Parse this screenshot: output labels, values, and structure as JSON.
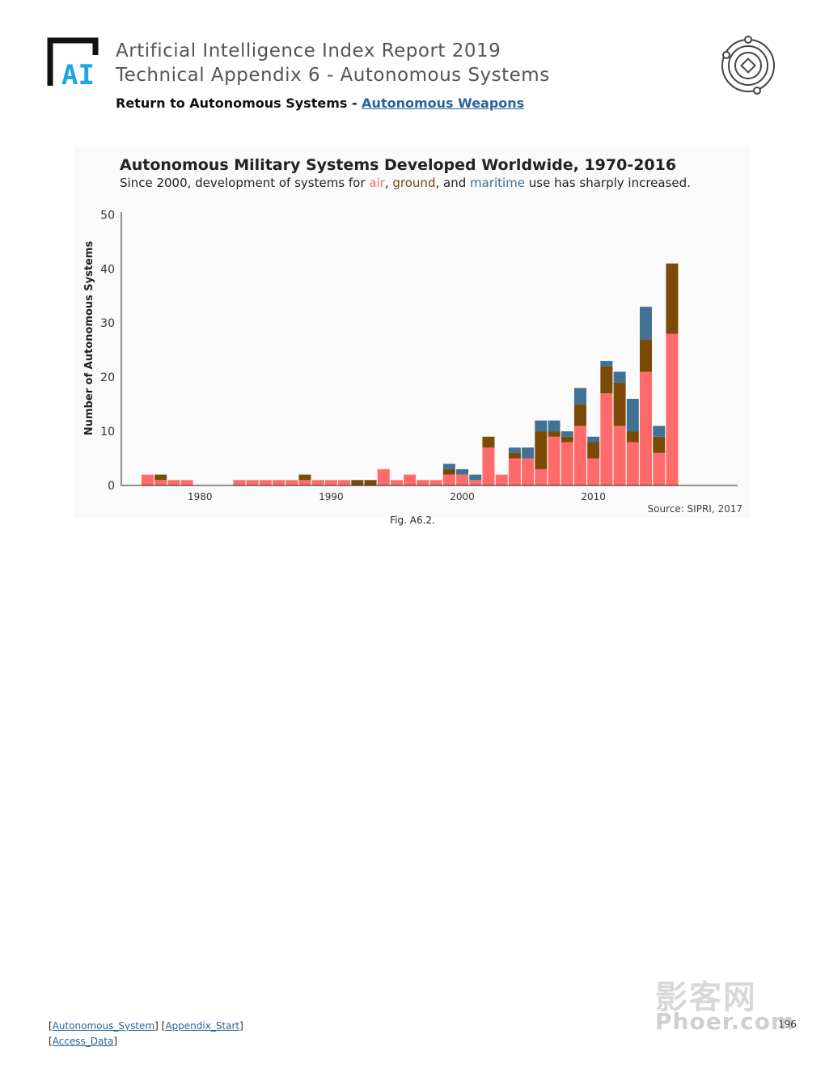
{
  "header": {
    "title": "Artificial Intelligence Index Report 2019",
    "subtitle": "Technical Appendix 6 - Autonomous Systems",
    "return_prefix": "Return to Autonomous Systems - ",
    "return_link": "Autonomous Weapons",
    "logo_text": "AI"
  },
  "colors": {
    "air": "#ff6b6b",
    "ground": "#7a4a06",
    "maritime": "#3f7295",
    "link": "#2a6496",
    "logo_blue": "#1ea6e0"
  },
  "chart_data": {
    "type": "bar",
    "stacked": true,
    "title": "Autonomous Military Systems Developed Worldwide, 1970-2016",
    "subtitle_parts": [
      {
        "text": "Since 2000, development of systems for ",
        "color": "#222222"
      },
      {
        "text": "air",
        "color": "#ff6b6b"
      },
      {
        "text": ", ",
        "color": "#222222"
      },
      {
        "text": "ground",
        "color": "#7a4a06"
      },
      {
        "text": ", and ",
        "color": "#222222"
      },
      {
        "text": "maritime",
        "color": "#3f7295"
      },
      {
        "text": " use has sharply increased.",
        "color": "#222222"
      }
    ],
    "ylabel": "Number of Autonomous Systems",
    "xlabel": "",
    "source": "Source: SIPRI, 2017",
    "ylim": [
      0,
      52
    ],
    "xlim": [
      1974,
      2021
    ],
    "yticks": [
      0,
      10,
      20,
      30,
      40,
      50
    ],
    "xticks": [
      1980,
      1990,
      2000,
      2010
    ],
    "grid": false,
    "x": [
      1976,
      1977,
      1978,
      1979,
      1980,
      1981,
      1982,
      1983,
      1984,
      1985,
      1986,
      1987,
      1988,
      1989,
      1990,
      1991,
      1992,
      1993,
      1994,
      1995,
      1996,
      1997,
      1998,
      1999,
      2000,
      2001,
      2002,
      2003,
      2004,
      2005,
      2006,
      2007,
      2008,
      2009,
      2010,
      2011,
      2012,
      2013,
      2014,
      2015,
      2016
    ],
    "series": [
      {
        "name": "air",
        "color": "#ff6b6b",
        "values": [
          2,
          1,
          1,
          1,
          0,
          0,
          0,
          1,
          1,
          1,
          1,
          1,
          1,
          1,
          1,
          1,
          0,
          0,
          3,
          1,
          2,
          1,
          1,
          2,
          2,
          1,
          7,
          2,
          5,
          5,
          3,
          9,
          8,
          11,
          5,
          17,
          11,
          8,
          21,
          6,
          28
        ]
      },
      {
        "name": "ground",
        "color": "#7a4a06",
        "values": [
          0,
          1,
          0,
          0,
          0,
          0,
          0,
          0,
          0,
          0,
          0,
          0,
          1,
          0,
          0,
          0,
          1,
          1,
          0,
          0,
          0,
          0,
          0,
          1,
          0,
          0,
          2,
          0,
          1,
          0,
          7,
          1,
          1,
          4,
          3,
          5,
          8,
          2,
          6,
          3,
          13
        ]
      },
      {
        "name": "maritime",
        "color": "#3f7295",
        "values": [
          0,
          0,
          0,
          0,
          0,
          0,
          0,
          0,
          0,
          0,
          0,
          0,
          0,
          0,
          0,
          0,
          0,
          0,
          0,
          0,
          0,
          0,
          0,
          1,
          1,
          1,
          0,
          0,
          1,
          2,
          2,
          2,
          1,
          3,
          1,
          1,
          2,
          6,
          6,
          2,
          0
        ]
      }
    ]
  },
  "caption": "Fig. A6.2.",
  "footer": {
    "link1": "Autonomous_System",
    "link2": "Appendix_Start",
    "link3": "Access_Data",
    "page_number": "196"
  },
  "watermark": {
    "cn": "影客网",
    "en": "Phoer.com"
  }
}
